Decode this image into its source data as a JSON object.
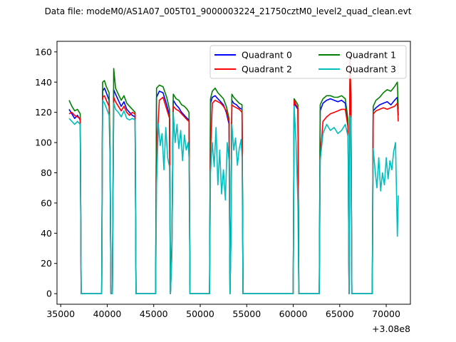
{
  "chart_data": {
    "type": "line",
    "title": "Data file: modeM0/AS1A07_005T01_9000003224_21750cztM0_level2_quad_clean.evt",
    "xlabel": "",
    "ylabel": "",
    "x_offset_label": "+3.08e8",
    "xlim": [
      34600,
      72600
    ],
    "ylim": [
      -7,
      167
    ],
    "x_ticks": [
      35000,
      40000,
      45000,
      50000,
      55000,
      60000,
      65000,
      70000
    ],
    "x_tick_labels": [
      "35000",
      "40000",
      "45000",
      "50000",
      "55000",
      "60000",
      "65000",
      "70000"
    ],
    "y_ticks": [
      0,
      20,
      40,
      60,
      80,
      100,
      120,
      140,
      160
    ],
    "y_tick_labels": [
      "0",
      "20",
      "40",
      "60",
      "80",
      "100",
      "120",
      "140",
      "160"
    ],
    "grid": false,
    "legend_position": "top-right",
    "series": [
      {
        "name": "Quadrant 0",
        "color": "#0000ff",
        "x": [
          35900,
          36200,
          36500,
          36800,
          37100,
          37200,
          39400,
          39500,
          39700,
          39900,
          40200,
          40300,
          40400,
          40550,
          40700,
          40900,
          41200,
          41500,
          41800,
          42100,
          42400,
          42700,
          43000,
          43100,
          45200,
          45300,
          45600,
          46000,
          46400,
          46700,
          46800,
          46950,
          47100,
          47400,
          47700,
          48000,
          48300,
          48600,
          48800,
          48900,
          51000,
          51100,
          51300,
          51600,
          51900,
          52200,
          52500,
          52800,
          53100,
          53200,
          53300,
          53400,
          53600,
          53900,
          54200,
          54500,
          54600,
          60000,
          60100,
          60300,
          60500,
          60600,
          62800,
          62900,
          63200,
          63600,
          64000,
          64400,
          64800,
          65200,
          65600,
          65900,
          66000,
          66100,
          66200,
          66300,
          68500,
          68600,
          68900,
          69300,
          69700,
          70100,
          70500,
          70900,
          71200,
          71300
        ],
        "y": [
          122,
          119,
          116,
          118,
          115,
          0,
          0,
          134,
          136,
          133,
          128,
          95,
          0,
          0,
          135,
          132,
          128,
          124,
          127,
          122,
          120,
          118,
          117,
          0,
          0,
          130,
          134,
          133,
          125,
          118,
          0,
          30,
          128,
          125,
          123,
          120,
          118,
          116,
          115,
          0,
          0,
          126,
          130,
          131,
          129,
          127,
          125,
          120,
          112,
          0,
          40,
          128,
          126,
          125,
          123,
          122,
          0,
          0,
          126,
          124,
          122,
          0,
          0,
          121,
          126,
          128,
          129,
          128,
          127,
          128,
          126,
          112,
          0,
          140,
          128,
          0,
          0,
          121,
          123,
          125,
          126,
          127,
          125,
          128,
          130,
          118
        ]
      },
      {
        "name": "Quadrant 1",
        "color": "#008000",
        "x": [
          35900,
          36200,
          36500,
          36800,
          37100,
          37200,
          39400,
          39500,
          39700,
          39900,
          40200,
          40300,
          40400,
          40550,
          40700,
          40900,
          41200,
          41500,
          41800,
          42100,
          42400,
          42700,
          43000,
          43100,
          45200,
          45300,
          45600,
          46000,
          46400,
          46700,
          46800,
          46950,
          47100,
          47400,
          47700,
          48000,
          48300,
          48600,
          48800,
          48900,
          51000,
          51100,
          51300,
          51600,
          51900,
          52200,
          52500,
          52800,
          53100,
          53200,
          53300,
          53400,
          53600,
          53900,
          54200,
          54500,
          54600,
          60000,
          60100,
          60300,
          60500,
          60600,
          62800,
          62900,
          63200,
          63600,
          64000,
          64400,
          64800,
          65200,
          65600,
          65900,
          66000,
          66100,
          66200,
          66300,
          68500,
          68600,
          68900,
          69300,
          69700,
          70100,
          70500,
          70900,
          71200,
          71300
        ],
        "y": [
          128,
          124,
          121,
          122,
          119,
          0,
          0,
          140,
          141,
          137,
          133,
          100,
          0,
          0,
          149,
          136,
          132,
          128,
          131,
          126,
          124,
          122,
          120,
          0,
          0,
          136,
          138,
          137,
          130,
          122,
          0,
          32,
          132,
          129,
          128,
          125,
          124,
          122,
          120,
          0,
          0,
          129,
          134,
          136,
          133,
          131,
          129,
          124,
          116,
          0,
          42,
          132,
          130,
          128,
          126,
          125,
          0,
          0,
          129,
          127,
          125,
          0,
          0,
          125,
          129,
          131,
          131,
          130,
          130,
          131,
          129,
          115,
          0,
          148,
          132,
          0,
          0,
          124,
          128,
          130,
          133,
          135,
          134,
          137,
          140,
          122
        ]
      },
      {
        "name": "Quadrant 2",
        "color": "#ff0000",
        "x": [
          35900,
          36200,
          36500,
          36800,
          37100,
          37200,
          39400,
          39500,
          39700,
          39900,
          40200,
          40300,
          40400,
          40550,
          40700,
          40900,
          41200,
          41500,
          41800,
          42100,
          42400,
          42700,
          43000,
          43100,
          45200,
          45300,
          45600,
          46000,
          46400,
          46700,
          46800,
          46950,
          47100,
          47400,
          47700,
          48000,
          48300,
          48600,
          48800,
          48900,
          51000,
          51100,
          51300,
          51600,
          51900,
          52200,
          52500,
          52800,
          53100,
          53200,
          53300,
          53400,
          53600,
          53900,
          54200,
          54500,
          54600,
          60000,
          60100,
          60300,
          60500,
          60600,
          62800,
          62900,
          63200,
          63600,
          64000,
          64400,
          64800,
          65200,
          65600,
          65900,
          66000,
          66100,
          66200,
          66300,
          68500,
          68600,
          68900,
          69300,
          69700,
          70100,
          70500,
          70900,
          71200,
          71300
        ],
        "y": [
          119,
          120,
          118,
          117,
          116,
          0,
          0,
          130,
          131,
          128,
          124,
          92,
          0,
          0,
          130,
          127,
          124,
          121,
          124,
          120,
          118,
          120,
          119,
          0,
          0,
          92,
          128,
          130,
          122,
          116,
          0,
          28,
          124,
          122,
          121,
          119,
          117,
          115,
          114,
          0,
          0,
          93,
          126,
          128,
          127,
          126,
          124,
          121,
          114,
          0,
          38,
          125,
          124,
          123,
          122,
          120,
          0,
          0,
          128,
          125,
          123,
          0,
          0,
          90,
          114,
          117,
          119,
          120,
          121,
          122,
          122,
          110,
          0,
          158,
          126,
          0,
          0,
          119,
          121,
          122,
          123,
          122,
          123,
          124,
          126,
          114
        ]
      },
      {
        "name": "Quadrant 3",
        "color": "#00bfbf",
        "x": [
          35900,
          36200,
          36500,
          36800,
          37100,
          37200,
          39400,
          39500,
          39700,
          39900,
          40200,
          40300,
          40400,
          40550,
          40700,
          40900,
          41200,
          41500,
          41800,
          42100,
          42400,
          42700,
          43000,
          43100,
          45200,
          45300,
          45500,
          45700,
          45900,
          46100,
          46300,
          46500,
          46700,
          46800,
          46950,
          47100,
          47300,
          47500,
          47700,
          47900,
          48100,
          48300,
          48500,
          48700,
          48800,
          48900,
          51000,
          51100,
          51300,
          51500,
          51700,
          51900,
          52100,
          52300,
          52500,
          52700,
          52900,
          53100,
          53200,
          53300,
          53400,
          53600,
          53800,
          54000,
          54200,
          54400,
          54500,
          54600,
          60000,
          60100,
          60300,
          60500,
          60600,
          62800,
          62900,
          63200,
          63600,
          64000,
          64400,
          64800,
          65200,
          65600,
          65900,
          66000,
          66100,
          66200,
          66300,
          68500,
          68600,
          68800,
          69000,
          69200,
          69400,
          69600,
          69800,
          70000,
          70200,
          70400,
          70600,
          70800,
          71000,
          71200,
          71300
        ],
        "y": [
          116,
          114,
          112,
          114,
          112,
          0,
          0,
          128,
          126,
          123,
          118,
          90,
          0,
          0,
          126,
          122,
          120,
          117,
          121,
          116,
          115,
          116,
          115,
          0,
          0,
          72,
          112,
          98,
          106,
          82,
          110,
          90,
          84,
          0,
          25,
          120,
          100,
          112,
          96,
          108,
          88,
          105,
          95,
          100,
          90,
          0,
          0,
          80,
          100,
          84,
          110,
          72,
          95,
          66,
          82,
          62,
          100,
          88,
          0,
          34,
          112,
          95,
          103,
          85,
          96,
          102,
          90,
          0,
          0,
          124,
          100,
          60,
          0,
          0,
          88,
          106,
          112,
          108,
          110,
          106,
          108,
          112,
          104,
          0,
          118,
          116,
          0,
          0,
          96,
          82,
          70,
          90,
          68,
          80,
          72,
          90,
          76,
          88,
          82,
          94,
          100,
          38,
          65
        ]
      }
    ]
  }
}
